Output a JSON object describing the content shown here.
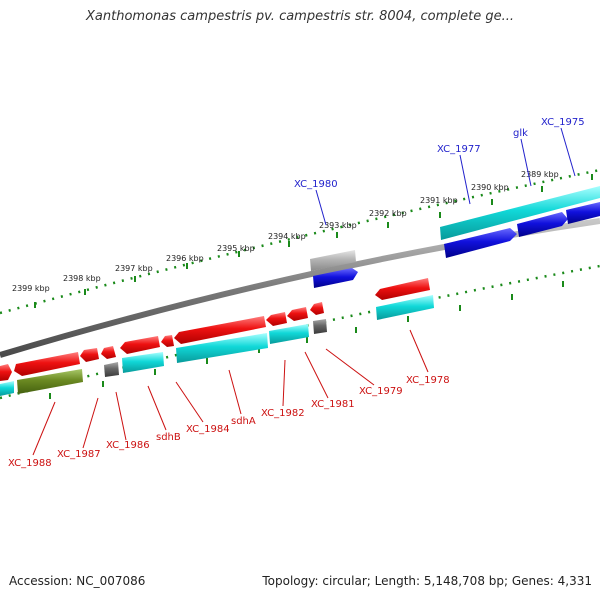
{
  "title": "Xanthomonas campestris pv. campestris str. 8004, complete ge...",
  "footer": {
    "accession": "Accession: NC_007086",
    "topology": "Topology: circular; Length: 5,148,708 bp; Genes: 4,331"
  },
  "colors": {
    "backbone": "#808080",
    "ticks": "#1a8a1a",
    "red_gene": "#ee1111",
    "cyan_gene": "#11cccc",
    "blue_gene": "#1111dd",
    "olive_gene": "#6b8a22",
    "gray_gene": "#666666",
    "light_gray_gene": "#aaaaaa",
    "label_forward": "#2222cc",
    "label_reverse": "#cc1111"
  },
  "kbp_labels": [
    "2399 kbp",
    "2398 kbp",
    "2397 kbp",
    "2396 kbp",
    "2395 kbp",
    "2394 kbp",
    "2393 kbp",
    "2392 kbp",
    "2391 kbp",
    "2390 kbp",
    "2389 kbp"
  ],
  "genes_above": [
    {
      "label": "XC_1980",
      "color": "label_forward"
    },
    {
      "label": "XC_1977",
      "color": "label_forward"
    },
    {
      "label": "glk",
      "color": "label_forward"
    },
    {
      "label": "XC_1975",
      "color": "label_forward"
    }
  ],
  "genes_below": [
    {
      "label": "XC_1988",
      "color": "label_reverse"
    },
    {
      "label": "XC_1987",
      "color": "label_reverse"
    },
    {
      "label": "XC_1986",
      "color": "label_reverse"
    },
    {
      "label": "sdhB",
      "color": "label_reverse"
    },
    {
      "label": "XC_1984",
      "color": "label_reverse"
    },
    {
      "label": "sdhA",
      "color": "label_reverse"
    },
    {
      "label": "XC_1982",
      "color": "label_reverse"
    },
    {
      "label": "XC_1981",
      "color": "label_reverse"
    },
    {
      "label": "XC_1979",
      "color": "label_reverse"
    },
    {
      "label": "XC_1978",
      "color": "label_reverse"
    }
  ]
}
